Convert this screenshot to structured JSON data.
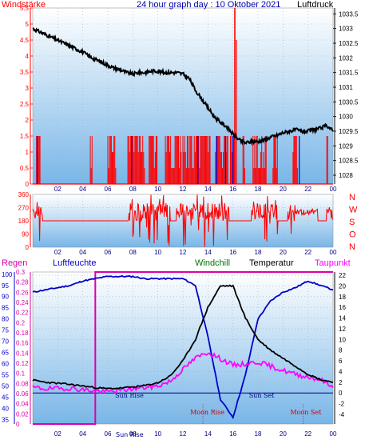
{
  "chart_data": [
    {
      "type": "line",
      "title": "24 hour graph day : 10 Oktober 2021",
      "left_label": "Windstärke",
      "right_label": "Luftdruck",
      "x_ticks": [
        "02",
        "04",
        "06",
        "08",
        "10",
        "12",
        "14",
        "16",
        "18",
        "20",
        "22",
        "00"
      ],
      "wind_yticks": [
        "5.5",
        "5",
        "4.5",
        "4",
        "3.5",
        "3",
        "2.5",
        "2",
        "1.5",
        "1",
        "0.5",
        "0"
      ],
      "wind_ylim": [
        0,
        5.5
      ],
      "pressure_yticks": [
        "1033.5",
        "1033",
        "1032.5",
        "1032",
        "1031.5",
        "1031",
        "1030.5",
        "1030",
        "1029.5",
        "1029",
        "1028.5",
        "1028"
      ],
      "pressure_ylim": [
        1027.7,
        1033.7
      ],
      "pressure": {
        "x": [
          0,
          0.5,
          1,
          1.5,
          2,
          2.5,
          3,
          3.5,
          4,
          4.5,
          5,
          5.5,
          6,
          6.5,
          7,
          7.5,
          8,
          8.5,
          9,
          9.5,
          10,
          10.5,
          11,
          11.5,
          12,
          12.5,
          13,
          13.5,
          14,
          14.5,
          15,
          15.5,
          16,
          16.5,
          17,
          17.5,
          18,
          18.5,
          19,
          19.5,
          20,
          20.5,
          21,
          21.5,
          22,
          22.5,
          23,
          23.5,
          24
        ],
        "values": [
          1033.0,
          1032.9,
          1032.8,
          1032.7,
          1032.6,
          1032.5,
          1032.4,
          1032.3,
          1032.2,
          1032.05,
          1031.95,
          1031.85,
          1031.75,
          1031.65,
          1031.6,
          1031.5,
          1031.45,
          1031.5,
          1031.5,
          1031.55,
          1031.55,
          1031.5,
          1031.5,
          1031.5,
          1031.45,
          1031.3,
          1030.9,
          1030.6,
          1030.3,
          1030.0,
          1029.8,
          1029.65,
          1029.4,
          1029.2,
          1029.1,
          1029.15,
          1029.15,
          1029.2,
          1029.3,
          1029.35,
          1029.45,
          1029.5,
          1029.55,
          1029.5,
          1029.5,
          1029.55,
          1029.6,
          1029.7,
          1029.5
        ]
      },
      "wind_active_hours": [
        [
          0.3,
          0.6
        ],
        [
          4.6,
          4.8
        ],
        [
          6.0,
          6.7
        ],
        [
          7.6,
          9.0
        ],
        [
          9.3,
          10.0
        ],
        [
          10.6,
          11.9
        ],
        [
          12.0,
          14.2
        ],
        [
          14.6,
          15.6
        ],
        [
          15.8,
          16.2
        ],
        [
          16.8,
          17.0
        ],
        [
          17.6,
          18.7
        ],
        [
          19.2,
          19.6
        ],
        [
          20.8,
          21.2
        ],
        [
          23.5,
          23.6
        ]
      ],
      "wind_spike": {
        "x": 16.15,
        "value": 5.5
      }
    },
    {
      "type": "line",
      "right_labels": [
        "N",
        "W",
        "S",
        "O",
        "N"
      ],
      "dir_yticks": [
        "360",
        "270",
        "180",
        "90",
        "0"
      ],
      "dir_ylim": [
        0,
        360
      ],
      "x_ticks": [
        "02",
        "04",
        "06",
        "08",
        "10",
        "12",
        "14",
        "16",
        "18",
        "20",
        "22",
        "00"
      ],
      "direction": {
        "base": 180,
        "active_ranges": [
          [
            0.0,
            0.8
          ],
          [
            7.6,
            11.0
          ],
          [
            11.5,
            15.7
          ],
          [
            17.5,
            19.6
          ],
          [
            20.4,
            22.8
          ],
          [
            23.5,
            24.0
          ]
        ]
      }
    },
    {
      "type": "line",
      "legend": [
        {
          "name": "Regen",
          "color": "#dd00aa"
        },
        {
          "name": "Luftfeuchte",
          "color": "#0000cc"
        },
        {
          "name": "Windchill",
          "color": "#007700"
        },
        {
          "name": "Temperatur",
          "color": "#000000"
        },
        {
          "name": "Taupunkt",
          "color": "#ff00ff"
        }
      ],
      "humidity_yticks": [
        "100",
        "95",
        "90",
        "85",
        "80",
        "75",
        "70",
        "65",
        "60",
        "55",
        "50",
        "45",
        "40",
        "35"
      ],
      "humidity_ylim": [
        33,
        101
      ],
      "rain_yticks": [
        "0.3",
        "0.28",
        "0.26",
        "0.24",
        "0.22",
        "0.2",
        "0.18",
        "0.16",
        "0.14",
        "0.12",
        "0.1",
        "0.08",
        "0.06",
        "0.04",
        "0.02",
        "0"
      ],
      "rain_ylim": [
        0,
        0.3
      ],
      "temp_yticks": [
        "22",
        "20",
        "18",
        "16",
        "14",
        "12",
        "10",
        "8",
        "6",
        "4",
        "2",
        "0",
        "-2",
        "-4"
      ],
      "temp_ylim": [
        -5.8,
        22.6
      ],
      "x_ticks": [
        "02",
        "04",
        "06",
        "08",
        "10",
        "12",
        "14",
        "16",
        "18",
        "20",
        "22",
        "00"
      ],
      "hours": [
        0,
        1,
        2,
        3,
        4,
        5,
        6,
        7,
        8,
        9,
        10,
        11,
        12,
        13,
        14,
        15,
        16,
        17,
        18,
        19,
        20,
        21,
        22,
        23,
        24
      ],
      "temperature": [
        2.4,
        2.0,
        1.8,
        1.6,
        1.3,
        1.0,
        0.8,
        0.9,
        1.1,
        1.4,
        1.9,
        3.2,
        6.0,
        10.0,
        16.0,
        20.0,
        20.0,
        14.0,
        10.0,
        8.0,
        6.5,
        5.0,
        3.5,
        2.5,
        2.0
      ],
      "dewpoint": [
        1.0,
        0.8,
        0.8,
        0.9,
        0.6,
        0.4,
        0.2,
        0.5,
        0.8,
        1.0,
        1.3,
        2.2,
        4.4,
        6.5,
        7.6,
        6.4,
        5.2,
        5.4,
        5.8,
        5.0,
        4.2,
        3.5,
        3.0,
        2.5,
        1.0
      ],
      "humidity": [
        92,
        93,
        94,
        95,
        97,
        98,
        99,
        99,
        99,
        98,
        98,
        98,
        98,
        95,
        72,
        44,
        36,
        55,
        80,
        88,
        92,
        94,
        97,
        95,
        93
      ],
      "rain": [
        0,
        0,
        0,
        0,
        0,
        0.3,
        0.3,
        0.3,
        0.3,
        0.3,
        0.3,
        0.3,
        0.3,
        0.3,
        0.3,
        0.3,
        0.3,
        0.3,
        0.3,
        0.3,
        0.3,
        0.3,
        0.3,
        0.3,
        0.3
      ],
      "events": [
        {
          "label": "Sun Rise",
          "x": 7.6
        },
        {
          "label": "Moon Rise",
          "x": 13.6
        },
        {
          "label": "Sun Set",
          "x": 18.3
        },
        {
          "label": "Moon Set",
          "x": 21.6
        }
      ],
      "bottom_label": "Sun Rise"
    }
  ],
  "colors": {
    "grid": "#b0b0b0",
    "wind": "#ff0000",
    "pressure": "#000000",
    "humidity": "#0000cc",
    "dewpoint": "#ff00ff",
    "rain": "#dd00aa",
    "title": "#0000aa",
    "event_line": "#000080"
  }
}
